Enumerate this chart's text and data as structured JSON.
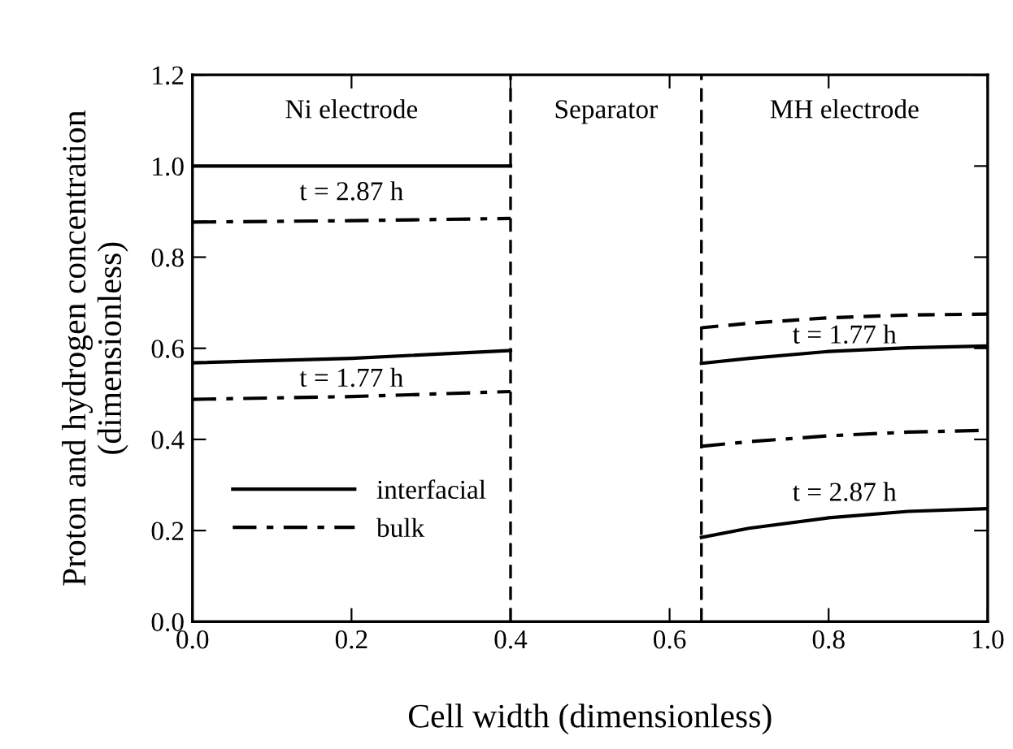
{
  "chart_data": {
    "type": "line",
    "xlabel": "Cell width (dimensionless)",
    "ylabel": "Proton and hydrogen concentration\n(dimensionless)",
    "xlim": [
      0,
      1
    ],
    "ylim": [
      0,
      1.2
    ],
    "xticks": [
      {
        "value": 0,
        "label": "0.0"
      },
      0.2,
      0.4,
      0.6,
      0.8,
      {
        "value": 1,
        "label": "1.0"
      }
    ],
    "yticks": [
      {
        "value": 0,
        "label": "0.0"
      },
      0.2,
      0.4,
      0.6,
      0.8,
      {
        "value": 1,
        "label": "1.0"
      },
      1.2
    ],
    "legend": "bottom left",
    "grid": false,
    "marker": "none",
    "series": [
      {
        "name": "interfacial",
        "color": "#000000",
        "line_style": "solid",
        "x": [
          0,
          0.2,
          0.4
        ],
        "values": [
          1.0,
          1.0,
          1.0
        ]
      },
      {
        "name": "bulk",
        "color": "#000000",
        "line_style": "dashdot",
        "x": [
          0,
          0.2,
          0.4
        ],
        "values": [
          0.877,
          0.88,
          0.885
        ]
      },
      {
        "color": "#000000",
        "line_style": "solid",
        "x": [
          0,
          0.2,
          0.4
        ],
        "values": [
          0.568,
          0.578,
          0.595
        ]
      },
      {
        "color": "#000000",
        "line_style": "dashdot",
        "x": [
          0,
          0.2,
          0.4
        ],
        "values": [
          0.488,
          0.494,
          0.505
        ]
      },
      {
        "color": "#000000",
        "line_style": "dashed",
        "x": [
          0.64,
          0.7,
          0.8,
          0.9,
          1.0
        ],
        "values": [
          0.645,
          0.655,
          0.667,
          0.673,
          0.675
        ]
      },
      {
        "color": "#000000",
        "line_style": "solid",
        "x": [
          0.64,
          0.7,
          0.8,
          0.9,
          1.0
        ],
        "values": [
          0.567,
          0.578,
          0.593,
          0.601,
          0.605
        ]
      },
      {
        "color": "#000000",
        "line_style": "dashdot",
        "x": [
          0.64,
          0.7,
          0.8,
          0.9,
          1.0
        ],
        "values": [
          0.385,
          0.395,
          0.408,
          0.416,
          0.42
        ]
      },
      {
        "color": "#000000",
        "line_style": "solid",
        "x": [
          0.64,
          0.7,
          0.8,
          0.9,
          1.0
        ],
        "values": [
          0.185,
          0.205,
          0.228,
          0.242,
          0.248
        ]
      }
    ],
    "ref_lines": [
      {
        "axis": "x",
        "value": 0.4,
        "line_style": "dashed",
        "color": "#000000"
      },
      {
        "axis": "x",
        "value": 0.64,
        "line_style": "dashed",
        "color": "#000000"
      }
    ],
    "annotations": [
      "Ni electrode",
      "Separator",
      "MH electrode",
      "t = 2.87 h",
      "t = 1.77 h",
      "t = 1.77 h",
      "t = 2.87 h"
    ]
  }
}
